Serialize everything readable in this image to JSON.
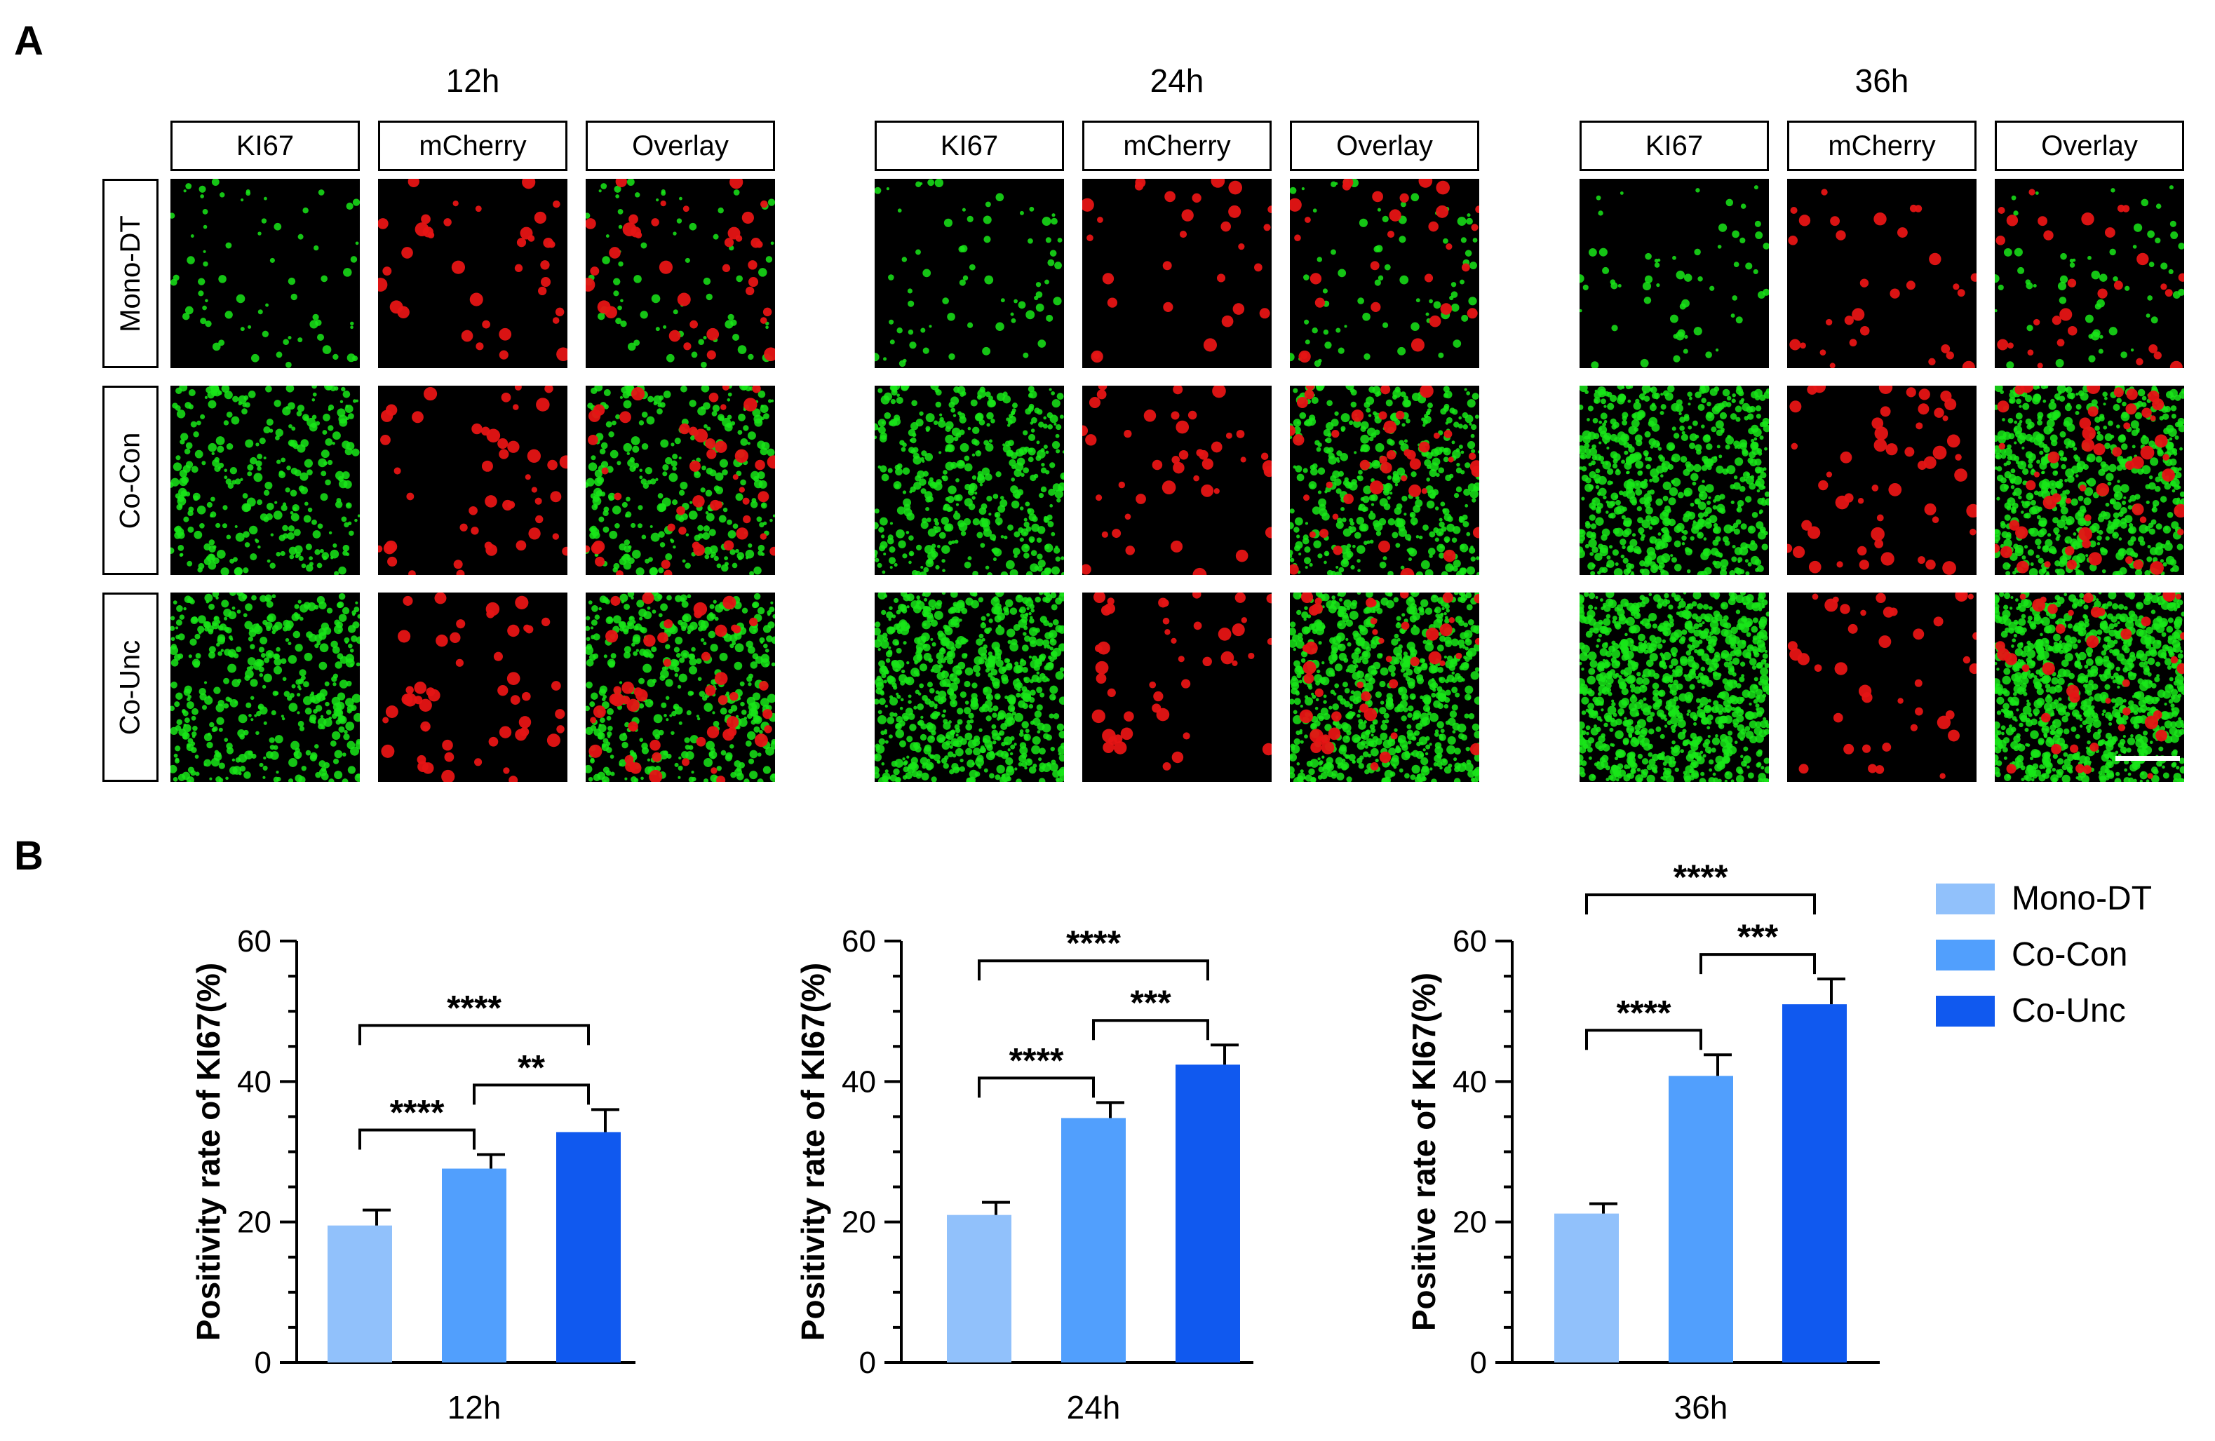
{
  "panel_a": {
    "letter": "A",
    "timepoints": [
      "12h",
      "24h",
      "36h"
    ],
    "channels": [
      "KI67",
      "mCherry",
      "Overlay"
    ],
    "groups": [
      "Mono-DT",
      "Co-Con",
      "Co-Unc"
    ],
    "colors": {
      "ki67": "#19e619",
      "mcherry": "#e61414",
      "background": "#000000"
    }
  },
  "panel_b": {
    "letter": "B"
  },
  "legend": [
    {
      "label": "Mono-DT",
      "color": "#91c1fb"
    },
    {
      "label": "Co-Con",
      "color": "#519ffd"
    },
    {
      "label": "Co-Unc",
      "color": "#1059ef"
    }
  ],
  "chart_data": [
    {
      "type": "bar",
      "categories": [
        "Mono-DT",
        "Co-Con",
        "Co-Unc"
      ],
      "values": [
        19.5,
        27.6,
        32.8
      ],
      "errors": [
        2.2,
        2.0,
        3.2
      ],
      "xlabel": "12h",
      "ylabel": "Positivity rate of KI67(%)",
      "ylim": [
        0,
        60
      ],
      "yticks": [
        0,
        20,
        40,
        60
      ],
      "significance": [
        {
          "from": 0,
          "to": 1,
          "label": "****"
        },
        {
          "from": 1,
          "to": 2,
          "label": "**"
        },
        {
          "from": 0,
          "to": 2,
          "label": "****"
        }
      ]
    },
    {
      "type": "bar",
      "categories": [
        "Mono-DT",
        "Co-Con",
        "Co-Unc"
      ],
      "values": [
        21.0,
        34.8,
        42.4
      ],
      "errors": [
        1.8,
        2.2,
        2.8
      ],
      "xlabel": "24h",
      "ylabel": "Positivity rate of KI67(%)",
      "ylim": [
        0,
        60
      ],
      "yticks": [
        0,
        20,
        40,
        60
      ],
      "significance": [
        {
          "from": 0,
          "to": 1,
          "label": "****"
        },
        {
          "from": 1,
          "to": 2,
          "label": "***"
        },
        {
          "from": 0,
          "to": 2,
          "label": "****"
        }
      ]
    },
    {
      "type": "bar",
      "categories": [
        "Mono-DT",
        "Co-Con",
        "Co-Unc"
      ],
      "values": [
        21.2,
        40.8,
        51.0
      ],
      "errors": [
        1.4,
        3.0,
        3.6
      ],
      "xlabel": "36h",
      "ylabel": "Positive rate of KI67(%)",
      "ylim": [
        0,
        60
      ],
      "yticks": [
        0,
        20,
        40,
        60
      ],
      "significance": [
        {
          "from": 0,
          "to": 1,
          "label": "****"
        },
        {
          "from": 1,
          "to": 2,
          "label": "***"
        },
        {
          "from": 0,
          "to": 2,
          "label": "****"
        }
      ]
    }
  ]
}
